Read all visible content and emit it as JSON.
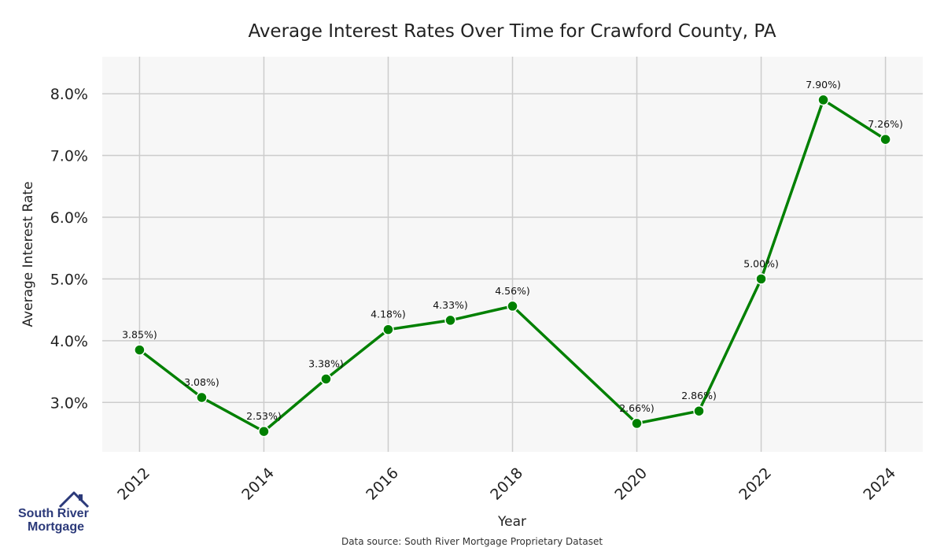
{
  "chart_data": {
    "type": "line",
    "title": "Average Interest Rates Over Time for Crawford County, PA",
    "xlabel": "Year",
    "ylabel": "Average Interest Rate",
    "xlim": [
      2011.4,
      2024.6
    ],
    "ylim": [
      2.2,
      8.6
    ],
    "x_ticks": [
      "2012",
      "2014",
      "2016",
      "2018",
      "2020",
      "2022",
      "2024"
    ],
    "y_ticks": [
      "3.0%",
      "4.0%",
      "5.0%",
      "6.0%",
      "7.0%",
      "8.0%"
    ],
    "grid": true,
    "line_color": "#008000",
    "series": [
      {
        "x": [
          2012,
          2013,
          2014,
          2015,
          2016,
          2017,
          2018,
          2020,
          2021,
          2022,
          2023,
          2024
        ],
        "values": [
          3.85,
          3.08,
          2.53,
          3.38,
          4.18,
          4.33,
          4.56,
          2.66,
          2.86,
          5.0,
          7.9,
          7.26
        ],
        "labels": [
          "3.85%)",
          "3.08%)",
          "2.53%)",
          "3.38%)",
          "4.18%)",
          "4.33%)",
          "4.56%)",
          "2.66%)",
          "2.86%)",
          "5.00%)",
          "7.90%)",
          "7.26%)"
        ]
      }
    ]
  },
  "logo": {
    "line1": "South River",
    "line2": "Mortgage",
    "icon": "house-roof-icon"
  },
  "footer": {
    "source": "Data source: South River Mortgage Proprietary Dataset"
  }
}
